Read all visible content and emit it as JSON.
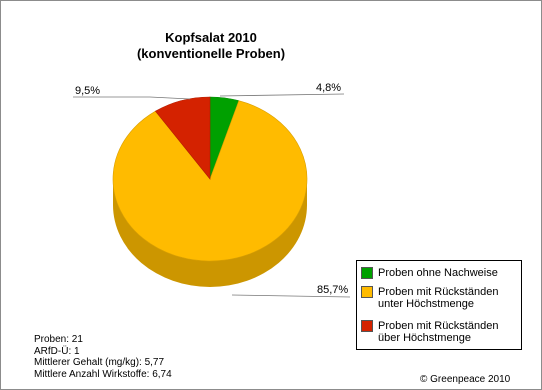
{
  "chart_data": {
    "type": "pie",
    "title": "Kopfsalat 2010",
    "subtitle": "(konventionelle Proben)",
    "slices": [
      {
        "label": "Proben ohne Nachweise",
        "value": 4.8,
        "value_label": "4,8%",
        "color": "#00a000"
      },
      {
        "label": "Proben mit Rückständen unter Höchstmenge",
        "value": 85.7,
        "value_label": "85,7%",
        "color": "#ffbb00"
      },
      {
        "label": "Proben mit Rückständen über Höchstmenge",
        "value": 9.5,
        "value_label": "9,5%",
        "color": "#d42200"
      }
    ],
    "legend_lines": [
      [
        "Proben ohne Nachweise"
      ],
      [
        "Proben mit Rückständen",
        "unter Höchstmenge"
      ],
      [
        "Proben mit Rückständen",
        "über Höchstmenge"
      ]
    ],
    "legend_position": "bottom-right",
    "start": "top",
    "direction": "clockwise",
    "three_d": true
  },
  "stats": [
    "Proben: 21",
    "ARfD-Ü: 1",
    "Mittlerer Gehalt (mg/kg): 5,77",
    "Mittlere Anzahl Wirkstoffe: 6,74"
  ],
  "copyright": "© Greenpeace 2010"
}
